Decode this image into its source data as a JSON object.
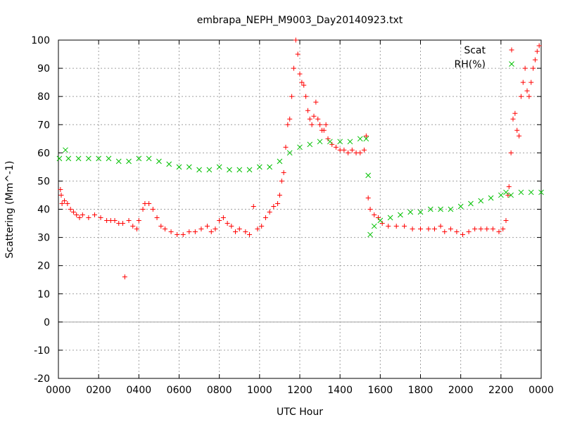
{
  "chart_data": {
    "type": "scatter",
    "title": "embrapa_NEPH_M9003_Day20140923.txt",
    "xlabel": "UTC Hour",
    "ylabel": "Scattering (Mm^-1)",
    "xlim": [
      0,
      2400
    ],
    "ylim": [
      -20,
      100
    ],
    "x_ticks": [
      "0000",
      "0200",
      "0400",
      "0600",
      "0800",
      "1000",
      "1200",
      "1400",
      "1600",
      "1800",
      "2000",
      "2200",
      "0000"
    ],
    "y_ticks": [
      -20,
      -10,
      0,
      10,
      20,
      30,
      40,
      50,
      60,
      70,
      80,
      90,
      100
    ],
    "grid": true,
    "legend_position": "top-right",
    "series": [
      {
        "name": "Scat",
        "color": "#ff0000",
        "marker": "+",
        "points": [
          [
            10,
            47
          ],
          [
            14,
            45
          ],
          [
            18,
            42
          ],
          [
            30,
            43
          ],
          [
            45,
            42
          ],
          [
            60,
            40
          ],
          [
            75,
            39
          ],
          [
            90,
            38
          ],
          [
            105,
            37
          ],
          [
            120,
            38
          ],
          [
            150,
            37
          ],
          [
            180,
            38
          ],
          [
            210,
            37
          ],
          [
            240,
            36
          ],
          [
            260,
            36
          ],
          [
            280,
            36
          ],
          [
            300,
            35
          ],
          [
            320,
            35
          ],
          [
            330,
            16
          ],
          [
            350,
            36
          ],
          [
            370,
            34
          ],
          [
            390,
            33
          ],
          [
            400,
            36
          ],
          [
            420,
            40
          ],
          [
            430,
            42
          ],
          [
            450,
            42
          ],
          [
            470,
            40
          ],
          [
            490,
            37
          ],
          [
            510,
            34
          ],
          [
            530,
            33
          ],
          [
            560,
            32
          ],
          [
            590,
            31
          ],
          [
            620,
            31
          ],
          [
            650,
            32
          ],
          [
            680,
            32
          ],
          [
            710,
            33
          ],
          [
            740,
            34
          ],
          [
            760,
            32
          ],
          [
            780,
            33
          ],
          [
            800,
            36
          ],
          [
            820,
            37
          ],
          [
            840,
            35
          ],
          [
            860,
            34
          ],
          [
            880,
            32
          ],
          [
            900,
            33
          ],
          [
            930,
            32
          ],
          [
            950,
            31
          ],
          [
            970,
            41
          ],
          [
            990,
            33
          ],
          [
            1010,
            34
          ],
          [
            1030,
            37
          ],
          [
            1050,
            39
          ],
          [
            1070,
            41
          ],
          [
            1090,
            42
          ],
          [
            1100,
            45
          ],
          [
            1110,
            50
          ],
          [
            1120,
            53
          ],
          [
            1130,
            62
          ],
          [
            1140,
            70
          ],
          [
            1150,
            72
          ],
          [
            1160,
            80
          ],
          [
            1170,
            90
          ],
          [
            1180,
            100
          ],
          [
            1190,
            95
          ],
          [
            1200,
            88
          ],
          [
            1210,
            85
          ],
          [
            1220,
            84
          ],
          [
            1230,
            80
          ],
          [
            1240,
            75
          ],
          [
            1250,
            72
          ],
          [
            1260,
            70
          ],
          [
            1270,
            73
          ],
          [
            1280,
            78
          ],
          [
            1290,
            72
          ],
          [
            1300,
            70
          ],
          [
            1310,
            68
          ],
          [
            1320,
            68
          ],
          [
            1330,
            70
          ],
          [
            1340,
            65
          ],
          [
            1360,
            63
          ],
          [
            1380,
            62
          ],
          [
            1400,
            61
          ],
          [
            1420,
            61
          ],
          [
            1440,
            60
          ],
          [
            1460,
            61
          ],
          [
            1480,
            60
          ],
          [
            1500,
            60
          ],
          [
            1520,
            61
          ],
          [
            1530,
            66
          ],
          [
            1540,
            44
          ],
          [
            1550,
            40
          ],
          [
            1570,
            38
          ],
          [
            1590,
            37
          ],
          [
            1610,
            35
          ],
          [
            1640,
            34
          ],
          [
            1680,
            34
          ],
          [
            1720,
            34
          ],
          [
            1760,
            33
          ],
          [
            1800,
            33
          ],
          [
            1840,
            33
          ],
          [
            1870,
            33
          ],
          [
            1900,
            34
          ],
          [
            1920,
            32
          ],
          [
            1950,
            33
          ],
          [
            1980,
            32
          ],
          [
            2010,
            31
          ],
          [
            2040,
            32
          ],
          [
            2070,
            33
          ],
          [
            2100,
            33
          ],
          [
            2130,
            33
          ],
          [
            2160,
            33
          ],
          [
            2190,
            32
          ],
          [
            2210,
            33
          ],
          [
            2225,
            36
          ],
          [
            2235,
            45
          ],
          [
            2240,
            48
          ],
          [
            2250,
            60
          ],
          [
            2260,
            72
          ],
          [
            2270,
            74
          ],
          [
            2280,
            68
          ],
          [
            2290,
            66
          ],
          [
            2300,
            80
          ],
          [
            2310,
            85
          ],
          [
            2320,
            90
          ],
          [
            2330,
            82
          ],
          [
            2340,
            80
          ],
          [
            2350,
            85
          ],
          [
            2360,
            90
          ],
          [
            2370,
            93
          ],
          [
            2380,
            96
          ],
          [
            2390,
            98
          ]
        ]
      },
      {
        "name": "RH(%)",
        "color": "#00c000",
        "marker": "x",
        "points": [
          [
            5,
            58
          ],
          [
            35,
            61
          ],
          [
            50,
            58
          ],
          [
            100,
            58
          ],
          [
            150,
            58
          ],
          [
            200,
            58
          ],
          [
            250,
            58
          ],
          [
            300,
            57
          ],
          [
            350,
            57
          ],
          [
            400,
            58
          ],
          [
            450,
            58
          ],
          [
            500,
            57
          ],
          [
            550,
            56
          ],
          [
            600,
            55
          ],
          [
            650,
            55
          ],
          [
            700,
            54
          ],
          [
            750,
            54
          ],
          [
            800,
            55
          ],
          [
            850,
            54
          ],
          [
            900,
            54
          ],
          [
            950,
            54
          ],
          [
            1000,
            55
          ],
          [
            1050,
            55
          ],
          [
            1100,
            57
          ],
          [
            1150,
            60
          ],
          [
            1200,
            62
          ],
          [
            1250,
            63
          ],
          [
            1300,
            64
          ],
          [
            1350,
            64
          ],
          [
            1400,
            64
          ],
          [
            1450,
            64
          ],
          [
            1500,
            65
          ],
          [
            1530,
            65
          ],
          [
            1540,
            52
          ],
          [
            1550,
            31
          ],
          [
            1570,
            34
          ],
          [
            1600,
            36
          ],
          [
            1650,
            37
          ],
          [
            1700,
            38
          ],
          [
            1750,
            39
          ],
          [
            1800,
            39
          ],
          [
            1850,
            40
          ],
          [
            1900,
            40
          ],
          [
            1950,
            40
          ],
          [
            2000,
            41
          ],
          [
            2050,
            42
          ],
          [
            2100,
            43
          ],
          [
            2150,
            44
          ],
          [
            2200,
            45
          ],
          [
            2225,
            46
          ],
          [
            2250,
            45
          ],
          [
            2300,
            46
          ],
          [
            2350,
            46
          ],
          [
            2400,
            46
          ]
        ]
      }
    ]
  }
}
